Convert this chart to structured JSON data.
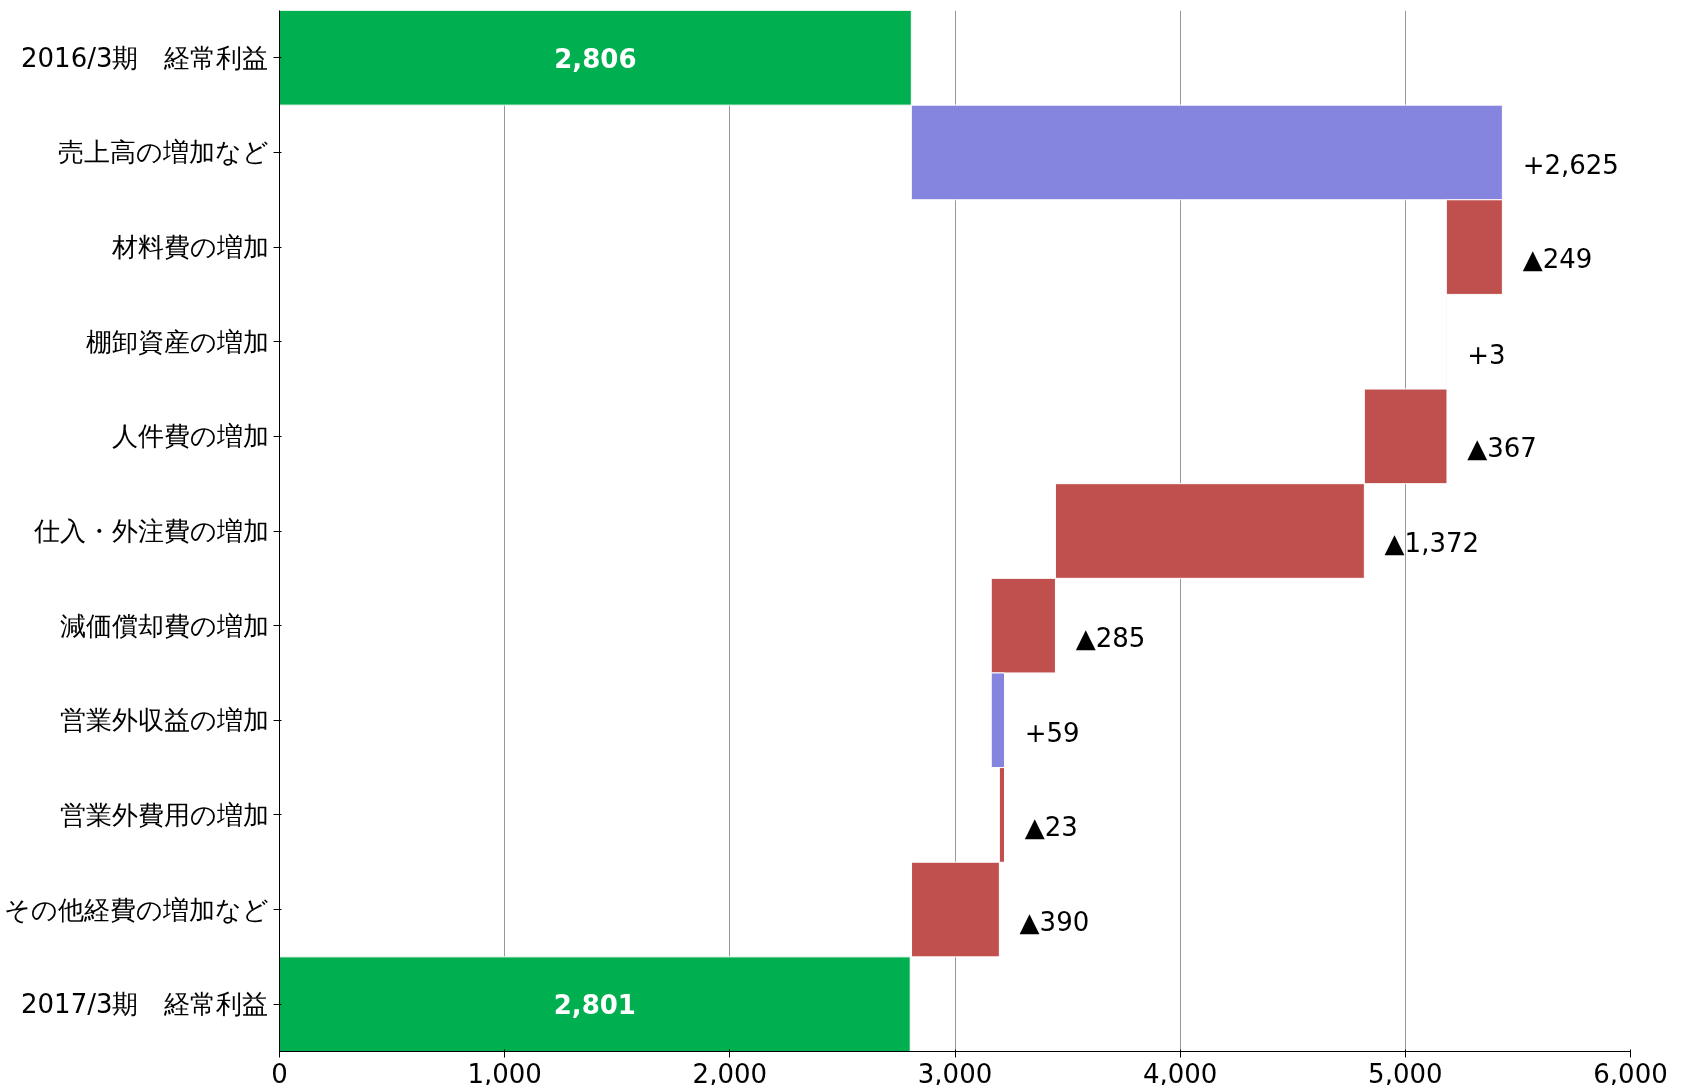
{
  "chart_data": {
    "type": "bar",
    "orientation": "horizontal",
    "categories": [
      "2016/3期　経常利益",
      "売上高の増加など",
      "材料費の増加",
      "棚卸資産の増加",
      "人件費の増加",
      "仕入・外注費の増加",
      "減価償却費の増加",
      "営業外収益の増加",
      "営業外費用の増加",
      "その他経費の増加など",
      "2017/3期　経常利益"
    ],
    "values": [
      2806,
      2625,
      -249,
      3,
      -367,
      -1372,
      -285,
      59,
      -23,
      -390,
      2801
    ],
    "base": [
      0,
      2806,
      5431,
      5182,
      5185,
      4818,
      3446,
      3161,
      3220,
      3197,
      0
    ],
    "colors": [
      "#00b050",
      "#8585e0",
      "#c0504d",
      "#8585e0",
      "#c0504d",
      "#c0504d",
      "#c0504d",
      "#8585e0",
      "#c0504d",
      "#c0504d",
      "#00b050"
    ],
    "value_labels": [
      "2,806",
      "+2,625",
      "▲249",
      "+3",
      "▲367",
      "▲1,372",
      "▲285",
      "+59",
      "▲23",
      "▲390",
      "2,801"
    ],
    "xlim": [
      0,
      6000
    ],
    "xticks": [
      0,
      {
        "value": 1000,
        "label": "1,000"
      },
      {
        "value": 2000,
        "label": "2,000"
      },
      {
        "value": 3000,
        "label": "3,000"
      },
      {
        "value": 4000,
        "label": "4,000"
      },
      {
        "value": 5000,
        "label": "5,000"
      },
      {
        "value": 6000,
        "label": "6,000"
      }
    ],
    "grid": "x"
  }
}
